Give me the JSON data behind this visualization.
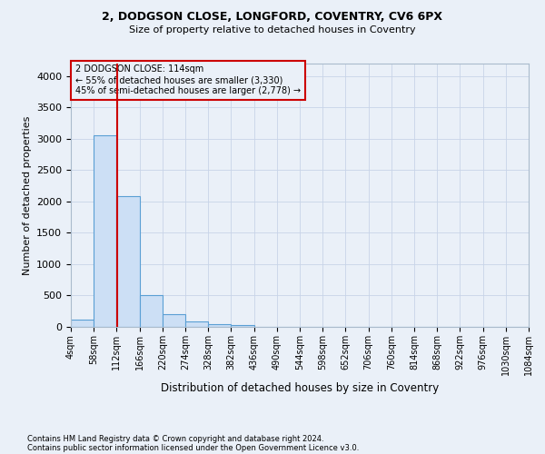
{
  "title1": "2, DODGSON CLOSE, LONGFORD, COVENTRY, CV6 6PX",
  "title2": "Size of property relative to detached houses in Coventry",
  "xlabel": "Distribution of detached houses by size in Coventry",
  "ylabel": "Number of detached properties",
  "footnote1": "Contains HM Land Registry data © Crown copyright and database right 2024.",
  "footnote2": "Contains public sector information licensed under the Open Government Licence v3.0.",
  "annotation_line1": "2 DODGSON CLOSE: 114sqm",
  "annotation_line2": "← 55% of detached houses are smaller (3,330)",
  "annotation_line3": "45% of semi-detached houses are larger (2,778) →",
  "bar_edges": [
    4,
    58,
    112,
    166,
    220,
    274,
    328,
    382,
    436,
    490,
    544,
    598,
    652,
    706,
    760,
    814,
    868,
    922,
    976,
    1030,
    1084
  ],
  "bar_heights": [
    120,
    3060,
    2080,
    510,
    200,
    90,
    50,
    30,
    0,
    0,
    0,
    0,
    0,
    0,
    0,
    0,
    0,
    0,
    0,
    0
  ],
  "property_size": 114,
  "bar_facecolor": "#ccdff5",
  "bar_edgecolor": "#5a9fd4",
  "redline_color": "#cc0000",
  "annotation_box_color": "#cc0000",
  "grid_color": "#c8d4e8",
  "background_color": "#eaf0f8",
  "ylim": [
    0,
    4200
  ],
  "yticks": [
    0,
    500,
    1000,
    1500,
    2000,
    2500,
    3000,
    3500,
    4000
  ]
}
